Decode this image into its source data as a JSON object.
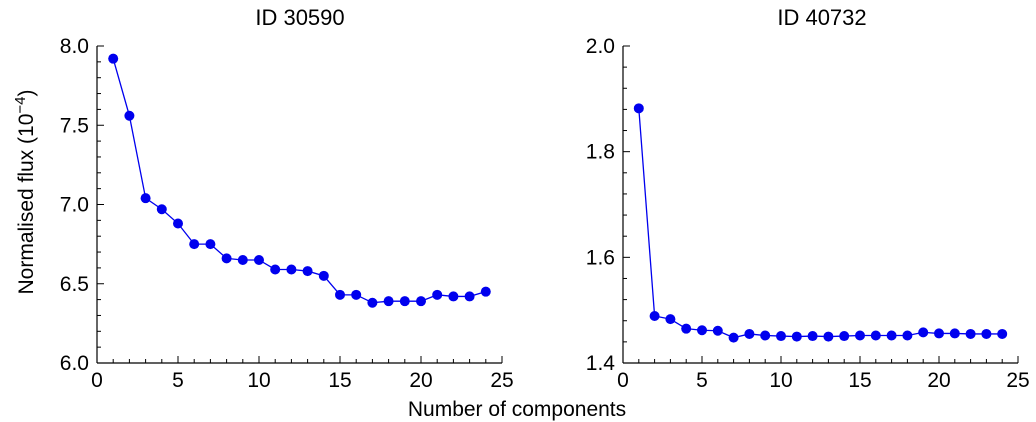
{
  "shared_xlabel": "Number of components",
  "shared_ylabel_main": "Normalised flux (10",
  "shared_ylabel_exp": "−4",
  "shared_ylabel_close": ")",
  "colors": {
    "series": "#0000ee",
    "axis": "#000000"
  },
  "chart_data": [
    {
      "type": "line",
      "title": "ID 30590",
      "xlim": [
        0,
        25
      ],
      "ylim": [
        6.0,
        8.0
      ],
      "x_ticks": [
        0,
        5,
        10,
        15,
        20,
        25
      ],
      "y_ticks": [
        6.0,
        6.5,
        7.0,
        7.5,
        8.0
      ],
      "y_tick_labels": [
        "6.0",
        "6.5",
        "7.0",
        "7.5",
        "8.0"
      ],
      "grid": false,
      "series": [
        {
          "x": [
            1,
            2,
            3,
            4,
            5,
            6,
            7,
            8,
            9,
            10,
            11,
            12,
            13,
            14,
            15,
            16,
            17,
            18,
            19,
            20,
            21,
            22,
            23,
            24
          ],
          "y": [
            7.92,
            7.56,
            7.04,
            6.97,
            6.88,
            6.75,
            6.75,
            6.66,
            6.65,
            6.65,
            6.59,
            6.59,
            6.58,
            6.55,
            6.43,
            6.43,
            6.38,
            6.39,
            6.39,
            6.39,
            6.43,
            6.42,
            6.42,
            6.45
          ]
        }
      ]
    },
    {
      "type": "line",
      "title": "ID 40732",
      "xlim": [
        0,
        25
      ],
      "ylim": [
        1.4,
        2.0
      ],
      "x_ticks": [
        0,
        5,
        10,
        15,
        20,
        25
      ],
      "y_ticks": [
        1.4,
        1.6,
        1.8,
        2.0
      ],
      "y_tick_labels": [
        "1.4",
        "1.6",
        "1.8",
        "2.0"
      ],
      "grid": false,
      "series": [
        {
          "x": [
            1,
            2,
            3,
            4,
            5,
            6,
            7,
            8,
            9,
            10,
            11,
            12,
            13,
            14,
            15,
            16,
            17,
            18,
            19,
            20,
            21,
            22,
            23,
            24
          ],
          "y": [
            1.882,
            1.489,
            1.483,
            1.465,
            1.462,
            1.461,
            1.448,
            1.455,
            1.452,
            1.451,
            1.45,
            1.451,
            1.45,
            1.451,
            1.452,
            1.452,
            1.452,
            1.452,
            1.458,
            1.456,
            1.456,
            1.455,
            1.455,
            1.455
          ]
        }
      ]
    }
  ]
}
